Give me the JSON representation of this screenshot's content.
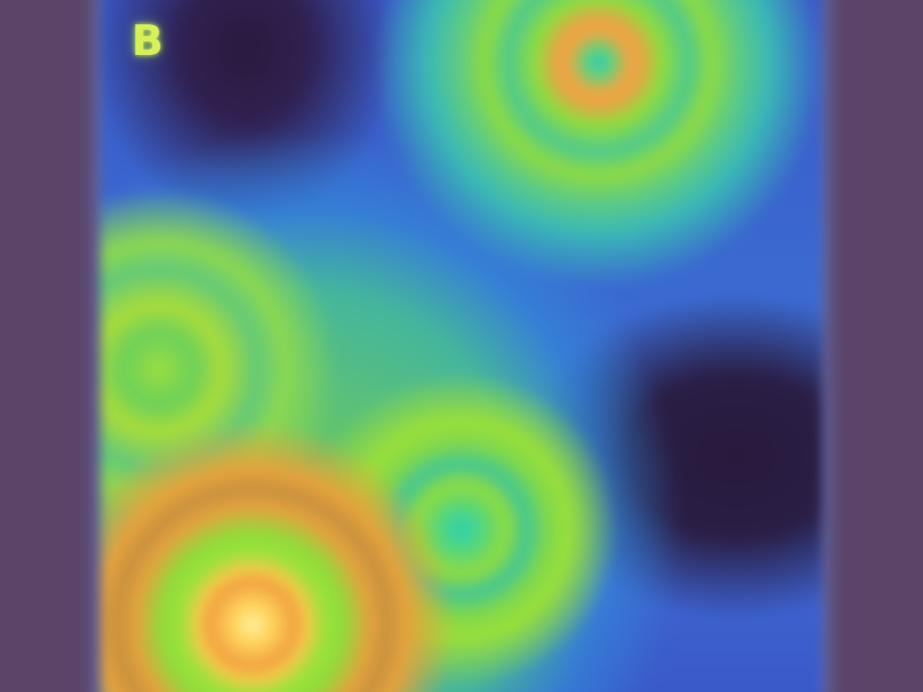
{
  "panel": {
    "label": "B"
  },
  "colors": {
    "margin": "#5b4468",
    "heatmap_low": "#2a1a3e",
    "heatmap_mid_low": "#3a6ad0",
    "heatmap_mid": "#58d67a",
    "heatmap_mid_high": "#9adf3a",
    "heatmap_high": "#f0a040",
    "heatmap_peak": "#fff2a0",
    "label": "#d6f05a"
  }
}
